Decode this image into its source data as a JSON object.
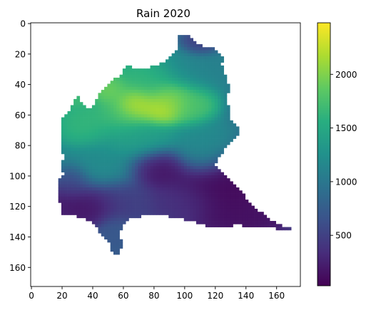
{
  "chart_data": {
    "type": "heatmap",
    "title": "Rain 2020",
    "xlabel": "",
    "ylabel": "",
    "xlim": [
      -0.5,
      175.5
    ],
    "ylim": [
      172.5,
      -0.5
    ],
    "x_ticks": [
      0,
      20,
      40,
      60,
      80,
      100,
      120,
      140,
      160
    ],
    "y_ticks": [
      0,
      20,
      40,
      60,
      80,
      100,
      120,
      140,
      160
    ],
    "colormap": "viridis",
    "colorbar": {
      "min": 30,
      "max": 2480,
      "ticks": [
        500,
        1000,
        1500,
        2000
      ]
    },
    "grid": false,
    "region_outline": [
      [
        97,
        9
      ],
      [
        100,
        8
      ],
      [
        105,
        9
      ],
      [
        108,
        13
      ],
      [
        112,
        15
      ],
      [
        117,
        16
      ],
      [
        122,
        18
      ],
      [
        126,
        22
      ],
      [
        125,
        27
      ],
      [
        126,
        32
      ],
      [
        128,
        37
      ],
      [
        130,
        42
      ],
      [
        129,
        47
      ],
      [
        128,
        52
      ],
      [
        131,
        57
      ],
      [
        130,
        62
      ],
      [
        134,
        66
      ],
      [
        137,
        70
      ],
      [
        134,
        75
      ],
      [
        130,
        80
      ],
      [
        126,
        84
      ],
      [
        123,
        88
      ],
      [
        121,
        93
      ],
      [
        124,
        98
      ],
      [
        130,
        102
      ],
      [
        134,
        106
      ],
      [
        137,
        110
      ],
      [
        141,
        115
      ],
      [
        146,
        120
      ],
      [
        150,
        124
      ],
      [
        155,
        128
      ],
      [
        160,
        131
      ],
      [
        165,
        133
      ],
      [
        170,
        135
      ],
      [
        166,
        136
      ],
      [
        160,
        135
      ],
      [
        154,
        134
      ],
      [
        148,
        134
      ],
      [
        142,
        134
      ],
      [
        138,
        133
      ],
      [
        132,
        133
      ],
      [
        126,
        134
      ],
      [
        120,
        134
      ],
      [
        114,
        133
      ],
      [
        108,
        131
      ],
      [
        102,
        130
      ],
      [
        98,
        128
      ],
      [
        93,
        128
      ],
      [
        88,
        126
      ],
      [
        83,
        125
      ],
      [
        78,
        126
      ],
      [
        72,
        127
      ],
      [
        66,
        128
      ],
      [
        62,
        130
      ],
      [
        58,
        138
      ],
      [
        60,
        145
      ],
      [
        58,
        151
      ],
      [
        54,
        152
      ],
      [
        52,
        146
      ],
      [
        48,
        140
      ],
      [
        44,
        136
      ],
      [
        40,
        131
      ],
      [
        35,
        128
      ],
      [
        30,
        127
      ],
      [
        24,
        127
      ],
      [
        21,
        126
      ],
      [
        20,
        120
      ],
      [
        18,
        114
      ],
      [
        17,
        108
      ],
      [
        18,
        104
      ],
      [
        22,
        100
      ],
      [
        20,
        94
      ],
      [
        22,
        88
      ],
      [
        20,
        82
      ],
      [
        21,
        76
      ],
      [
        19,
        70
      ],
      [
        20,
        64
      ],
      [
        24,
        60
      ],
      [
        27,
        55
      ],
      [
        28,
        50
      ],
      [
        31,
        48
      ],
      [
        33,
        52
      ],
      [
        37,
        56
      ],
      [
        40,
        55
      ],
      [
        43,
        50
      ],
      [
        47,
        44
      ],
      [
        52,
        40
      ],
      [
        56,
        36
      ],
      [
        60,
        33
      ],
      [
        62,
        28
      ],
      [
        65,
        27
      ],
      [
        67,
        30
      ],
      [
        70,
        31
      ],
      [
        72,
        30
      ],
      [
        76,
        30
      ],
      [
        82,
        28
      ],
      [
        88,
        26
      ],
      [
        92,
        22
      ],
      [
        95,
        18
      ],
      [
        96,
        13
      ]
    ],
    "rain_blobs": [
      {
        "x": 68,
        "y": 54,
        "sx": 7,
        "sy": 6,
        "value": 2450
      },
      {
        "x": 84,
        "y": 56,
        "sx": 8,
        "sy": 6,
        "value": 2350
      },
      {
        "x": 92,
        "y": 50,
        "sx": 7,
        "sy": 6,
        "value": 2100
      },
      {
        "x": 52,
        "y": 44,
        "sx": 6,
        "sy": 5,
        "value": 2000
      },
      {
        "x": 60,
        "y": 60,
        "sx": 10,
        "sy": 8,
        "value": 1750
      },
      {
        "x": 104,
        "y": 54,
        "sx": 8,
        "sy": 7,
        "value": 1800
      },
      {
        "x": 78,
        "y": 40,
        "sx": 16,
        "sy": 10,
        "value": 1650
      },
      {
        "x": 35,
        "y": 66,
        "sx": 9,
        "sy": 8,
        "value": 1650
      },
      {
        "x": 30,
        "y": 50,
        "sx": 4,
        "sy": 3,
        "value": 1700
      },
      {
        "x": 70,
        "y": 76,
        "sx": 14,
        "sy": 8,
        "value": 1400
      },
      {
        "x": 112,
        "y": 82,
        "sx": 10,
        "sy": 9,
        "value": 1200
      },
      {
        "x": 105,
        "y": 30,
        "sx": 12,
        "sy": 8,
        "value": 1100
      },
      {
        "x": 110,
        "y": 14,
        "sx": 6,
        "sy": 4,
        "value": 450
      },
      {
        "x": 45,
        "y": 95,
        "sx": 14,
        "sy": 9,
        "value": 1200
      },
      {
        "x": 83,
        "y": 96,
        "sx": 10,
        "sy": 7,
        "value": 150
      },
      {
        "x": 36,
        "y": 118,
        "sx": 14,
        "sy": 8,
        "value": 150
      },
      {
        "x": 62,
        "y": 116,
        "sx": 10,
        "sy": 7,
        "value": 500
      },
      {
        "x": 124,
        "y": 110,
        "sx": 20,
        "sy": 12,
        "value": 60
      },
      {
        "x": 140,
        "y": 128,
        "sx": 15,
        "sy": 6,
        "value": 120
      },
      {
        "x": 98,
        "y": 118,
        "sx": 12,
        "sy": 8,
        "value": 400
      },
      {
        "x": 55,
        "y": 140,
        "sx": 6,
        "sy": 8,
        "value": 700
      },
      {
        "x": 28,
        "y": 104,
        "sx": 6,
        "sy": 6,
        "value": 500
      }
    ],
    "base_value": 950
  }
}
